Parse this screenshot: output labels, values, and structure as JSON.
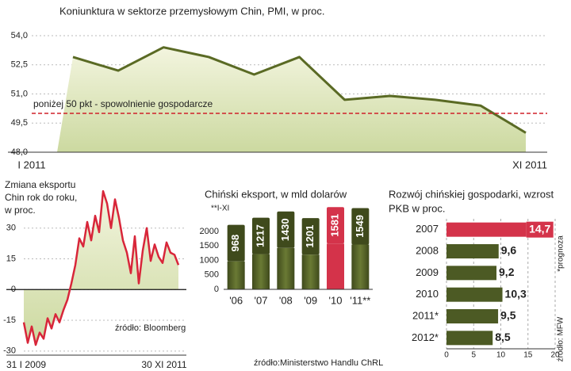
{
  "chart_data": [
    {
      "type": "area-line",
      "title": "Koniunktura w sektorze przemysłowym Chin, PMI, w proc.",
      "categories": [
        "I 2011",
        null,
        null,
        null,
        null,
        null,
        null,
        null,
        null,
        null,
        "XI 2011"
      ],
      "series": [
        {
          "color": "#5a6a24",
          "values": [
            52.9,
            52.2,
            53.4,
            52.9,
            52.0,
            52.9,
            50.7,
            50.9,
            50.7,
            50.4,
            49.0
          ]
        }
      ],
      "ylim": [
        48,
        54
      ],
      "yticks": [
        {
          "value": 54,
          "label": "54,0"
        },
        {
          "value": 52.5,
          "label": "52,5"
        },
        {
          "value": 51,
          "label": "51,0"
        },
        {
          "value": 49.5,
          "label": "49,5"
        },
        {
          "value": 48,
          "label": "48,0"
        }
      ],
      "reference_line": {
        "value": 50,
        "label": "poniżej 50 pkt - spowolnienie gospodarcze",
        "color": "#d0202a"
      },
      "grid": true
    },
    {
      "type": "line",
      "title": [
        "Zmiana eksportu",
        "Chin rok do roku,",
        "w proc."
      ],
      "categories": [
        "31 I 2009",
        null,
        null,
        null,
        null,
        null,
        null,
        null,
        null,
        null,
        null,
        null,
        null,
        null,
        null,
        null,
        null,
        null,
        null,
        null,
        null,
        null,
        null,
        null,
        null,
        null,
        null,
        null,
        null,
        null,
        null,
        null,
        null,
        null,
        null,
        null,
        null,
        null,
        null,
        "30 XI 2011"
      ],
      "series": [
        {
          "color": "#d8263a",
          "values": [
            -16,
            -26,
            -18,
            -27,
            -21,
            -24,
            -14,
            -19,
            -12,
            -16,
            -10,
            -5,
            3,
            12,
            25,
            21,
            33,
            24,
            36,
            28,
            48,
            42,
            30,
            44,
            35,
            24,
            18,
            8,
            26,
            3,
            19,
            30,
            14,
            22,
            16,
            13,
            23,
            18,
            17,
            12
          ]
        }
      ],
      "ylim": [
        -32,
        50
      ],
      "yticks": [
        30,
        15,
        0,
        -15,
        -30
      ],
      "grid": true,
      "source": "źródło: Bloomberg"
    },
    {
      "type": "bar",
      "title": "Chiński eksport, w mld dolarów",
      "subtitle": "**I-XI",
      "categories": [
        "'06",
        "'07",
        "'08",
        "'09",
        "'10",
        "'11**"
      ],
      "values": [
        968,
        1217,
        1430,
        1201,
        1581,
        1549
      ],
      "colors": [
        "#55632a",
        "#55632a",
        "#55632a",
        "#55632a",
        "#d4334a",
        "#55632a"
      ],
      "ylim": [
        0,
        2000
      ],
      "yticks": [
        0,
        500,
        1000,
        1500,
        2000
      ],
      "source": "źródło:Ministerstwo Handlu ChRL"
    },
    {
      "type": "barh",
      "title": [
        "Rozwój chińskiej gospodarki, wzrost",
        "PKB w proc."
      ],
      "categories": [
        "2007",
        "2008",
        "2009",
        "2010",
        "2011*",
        "2012*"
      ],
      "values": [
        14.7,
        9.6,
        9.2,
        10.3,
        9.5,
        8.5
      ],
      "value_labels": [
        "14,7",
        "9,6",
        "9,2",
        "10,3",
        "9,5",
        "8,5"
      ],
      "colors": [
        "#d4334a",
        "#4c5a24",
        "#4c5a24",
        "#4c5a24",
        "#4c5a24",
        "#4c5a24"
      ],
      "xlim": [
        0,
        20
      ],
      "xticks": [
        0,
        5,
        10,
        15,
        20
      ],
      "grid": true,
      "note": "*prognoza",
      "source": "źródło: MFW"
    }
  ]
}
